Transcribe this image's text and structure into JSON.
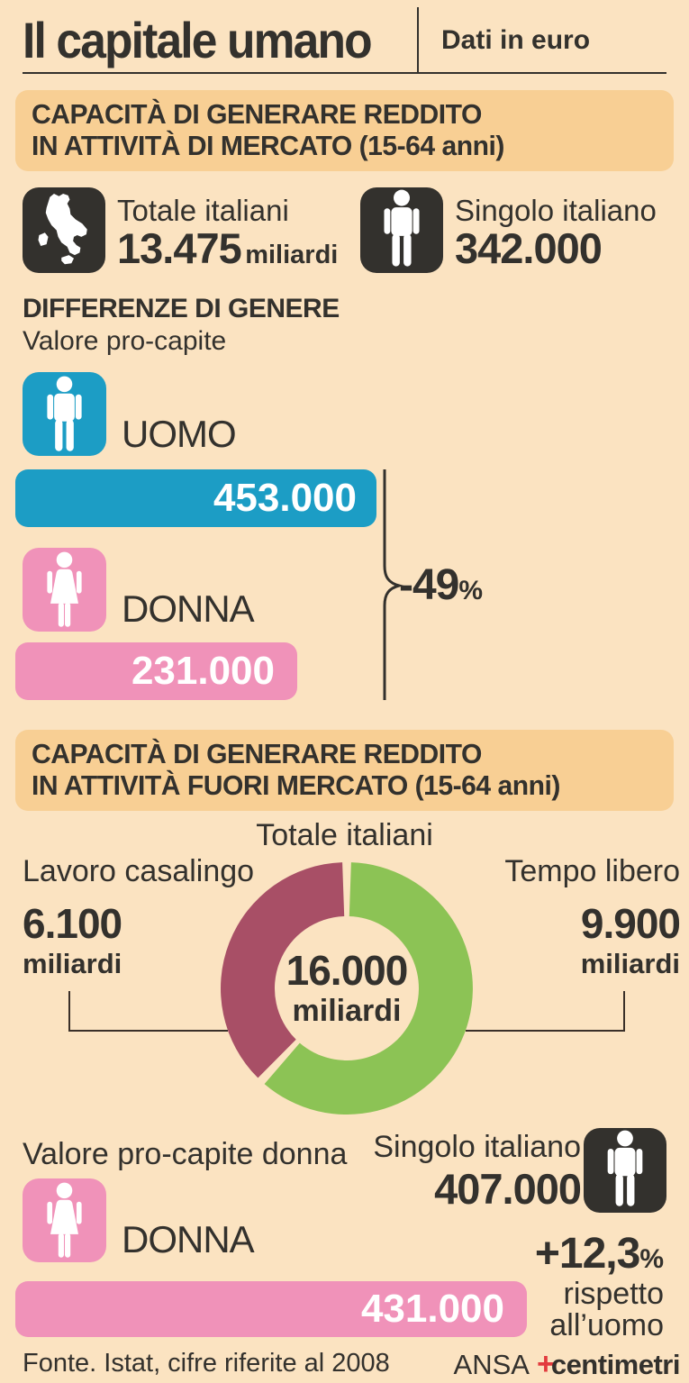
{
  "header": {
    "title": "Il capitale umano",
    "subtitle": "Dati in euro"
  },
  "section_market": {
    "banner_line1": "CAPACITÀ DI GENERARE REDDITO",
    "banner_line2": "IN ATTIVITÀ DI MERCATO (15-64 anni)",
    "total": {
      "label": "Totale italiani",
      "value": "13.475",
      "unit": "miliardi"
    },
    "single": {
      "label": "Singolo italiano",
      "value": "342.000"
    },
    "gender": {
      "heading": "DIFFERENZE DI GENERE",
      "subheading": "Valore pro-capite",
      "man": {
        "label": "UOMO",
        "value": "453.000"
      },
      "woman": {
        "label": "DONNA",
        "value": "231.000"
      },
      "difference_value": "-49",
      "difference_unit": "%"
    }
  },
  "section_nonmarket": {
    "banner_line1": "CAPACITÀ DI GENERARE REDDITO",
    "banner_line2": "IN ATTIVITÀ FUORI MERCATO (15-64 anni)",
    "donut_title": "Totale italiani",
    "left": {
      "label": "Lavoro casalingo",
      "value": "6.100",
      "unit": "miliardi"
    },
    "right": {
      "label": "Tempo libero",
      "value": "9.900",
      "unit": "miliardi"
    },
    "center": {
      "value": "16.000",
      "unit": "miliardi"
    },
    "pro_capite_heading": "Valore pro-capite donna",
    "woman": {
      "label": "DONNA",
      "value": "431.000"
    },
    "single": {
      "label": "Singolo italiano",
      "value": "407.000"
    },
    "difference_value": "+12,3",
    "difference_unit": "%",
    "note_line1": "rispetto",
    "note_line2": "all’uomo"
  },
  "footer": {
    "source": "Fonte. Istat, cifre riferite al 2008",
    "credit_ansa": "ANSA",
    "credit_logo": "centimetri"
  },
  "colors": {
    "background": "#fbe3c1",
    "banner": "#f8cf94",
    "dark": "#33312d",
    "blue": "#1c9dc5",
    "pink": "#f092b9",
    "maroon": "#a84f66",
    "green": "#8cc355",
    "line": "#3a3029"
  },
  "chart_data": [
    {
      "type": "bar",
      "title": "Differenze di genere - Valore pro-capite (euro)",
      "categories": [
        "UOMO",
        "DONNA"
      ],
      "values": [
        453000,
        231000
      ],
      "annotation": "-49%",
      "colors": [
        "#1c9dc5",
        "#f092b9"
      ],
      "orientation": "horizontal"
    },
    {
      "type": "pie",
      "title": "Totale italiani - capacità di generare reddito in attività fuori mercato (miliardi di euro)",
      "labels": [
        "Tempo libero",
        "Lavoro casalingo"
      ],
      "values": [
        9900,
        6100
      ],
      "center_label": "16.000 miliardi",
      "colors": [
        "#8cc355",
        "#a84f66"
      ],
      "donut": true,
      "start_angle_deg_from_top": 0,
      "direction": "clockwise"
    },
    {
      "type": "bar",
      "title": "Valore pro-capite donna fuori mercato (euro)",
      "categories": [
        "DONNA"
      ],
      "values": [
        431000
      ],
      "annotation": "+12,3% rispetto all’uomo",
      "colors": [
        "#f092b9"
      ],
      "orientation": "horizontal"
    }
  ]
}
